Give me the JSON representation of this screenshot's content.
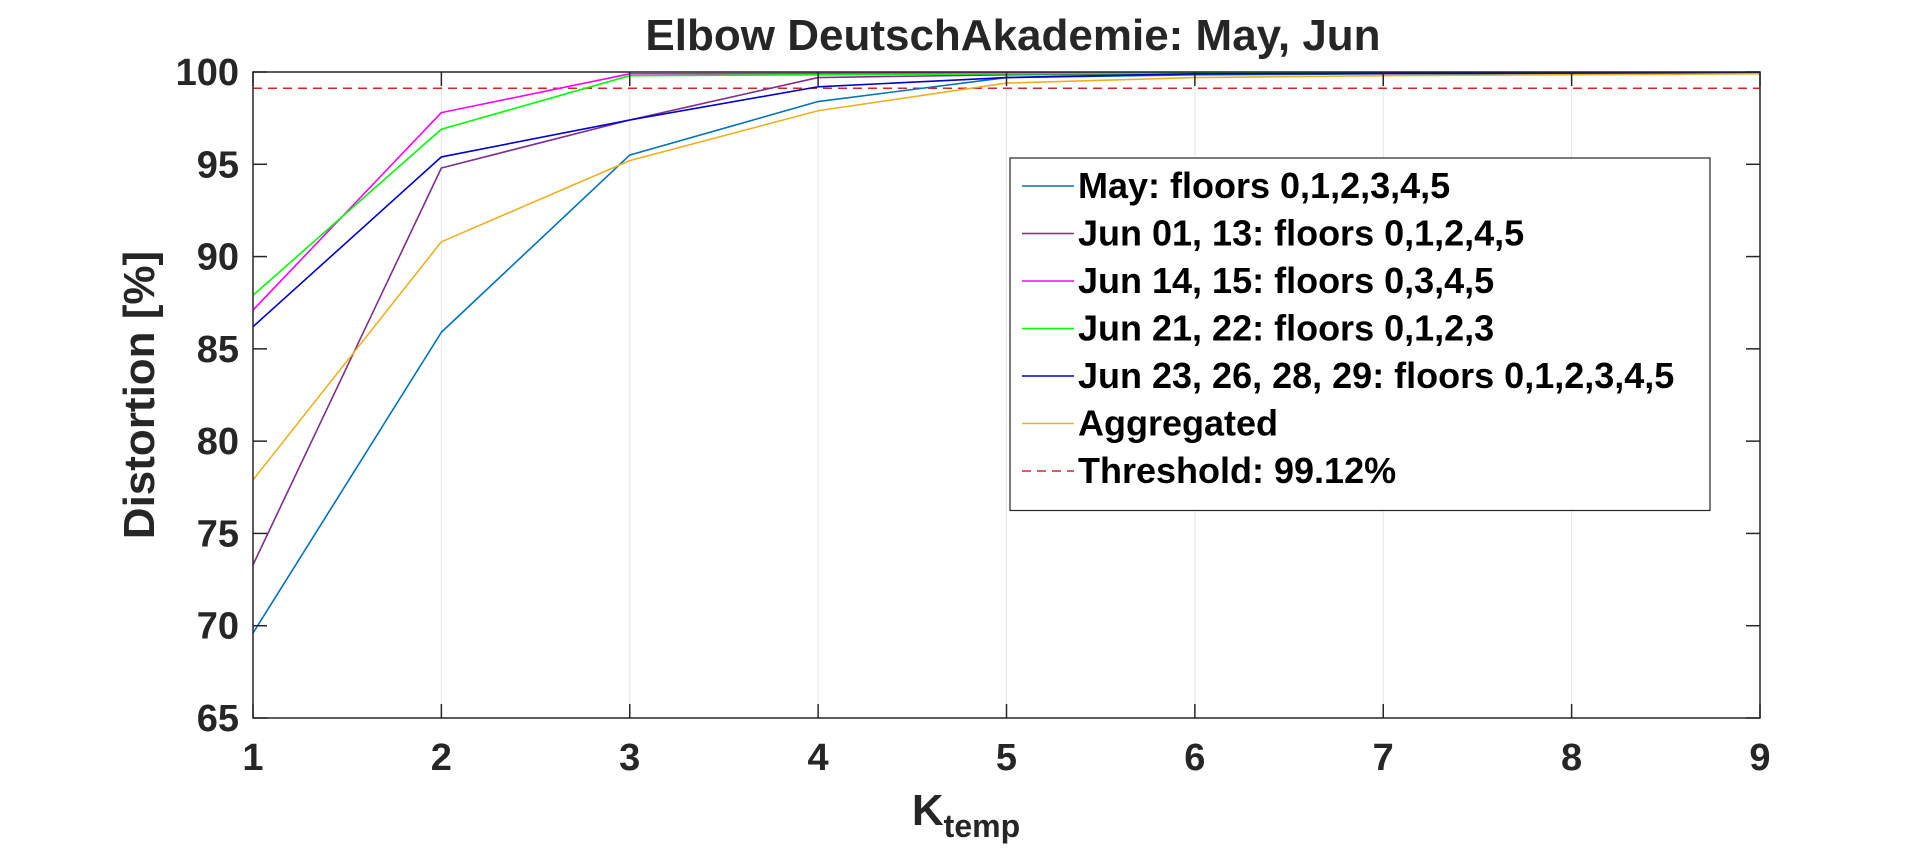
{
  "chart_data": {
    "type": "line",
    "title": "Elbow DeutschAkademie: May, Jun",
    "xlabel": "K",
    "xlabel_subscript": "temp",
    "ylabel": "Distortion [%]",
    "xlim": [
      1,
      9
    ],
    "ylim": [
      65,
      100
    ],
    "x_ticks": [
      1,
      2,
      3,
      4,
      5,
      6,
      7,
      8,
      9
    ],
    "y_ticks": [
      65,
      70,
      75,
      80,
      85,
      90,
      95,
      100
    ],
    "grid": "vertical",
    "legend_position": "right",
    "x": [
      1,
      2,
      3,
      4,
      5,
      6,
      7,
      8,
      9
    ],
    "series": [
      {
        "name": "May: floors 0,1,2,3,4,5",
        "color": "#0072BD",
        "values": [
          69.6,
          85.9,
          95.5,
          98.4,
          99.7,
          99.85,
          99.9,
          99.92,
          99.95
        ]
      },
      {
        "name": "Jun 01, 13: floors 0,1,2,4,5",
        "color": "#7E2F8E",
        "values": [
          73.3,
          94.8,
          97.4,
          99.7,
          99.85,
          99.9,
          99.92,
          99.95,
          99.97
        ]
      },
      {
        "name": "Jun 14, 15: floors 0,3,4,5",
        "color": "#FF00FF",
        "values": [
          87.1,
          97.8,
          99.9,
          99.92,
          99.95,
          99.96,
          99.97,
          99.98,
          99.99
        ]
      },
      {
        "name": "Jun 21, 22: floors 0,1,2,3",
        "color": "#00FF00",
        "values": [
          87.9,
          96.9,
          99.8,
          99.85,
          99.9,
          99.93,
          99.95,
          99.97,
          99.98
        ]
      },
      {
        "name": "Jun 23, 26, 28, 29: floors 0,1,2,3,4,5",
        "color": "#0000CD",
        "values": [
          86.2,
          95.4,
          97.4,
          99.2,
          99.7,
          99.9,
          99.93,
          99.95,
          99.97
        ]
      },
      {
        "name": "Aggregated",
        "color": "#EDB120",
        "values": [
          77.9,
          90.8,
          95.2,
          97.9,
          99.4,
          99.7,
          99.8,
          99.85,
          99.9
        ]
      }
    ],
    "threshold": {
      "name": "Threshold: 99.12%",
      "value": 99.12,
      "color": "#D62728",
      "style": "dashed"
    }
  }
}
